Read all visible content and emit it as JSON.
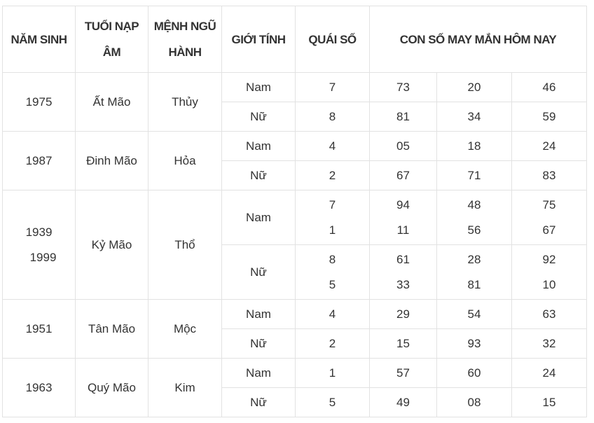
{
  "header": {
    "nam_sinh": "NĂM SINH",
    "tuoi_nap_am": "TUỔI NẠP ÂM",
    "menh_ngu_hanh": "MỆNH NGŨ HÀNH",
    "gioi_tinh": "GIỚI TÍNH",
    "quai_so": "QUÁI SỐ",
    "con_so": "CON SỐ MAY MẮN HÔM NAY"
  },
  "groups": [
    {
      "years": [
        "1975"
      ],
      "nap_am": "Ất Mão",
      "menh": "Thủy",
      "genders": [
        {
          "label": "Nam",
          "quai": [
            "7"
          ],
          "numbers": [
            [
              "73",
              "20",
              "46"
            ]
          ]
        },
        {
          "label": "Nữ",
          "quai": [
            "8"
          ],
          "numbers": [
            [
              "81",
              "34",
              "59"
            ]
          ]
        }
      ]
    },
    {
      "years": [
        "1987"
      ],
      "nap_am": "Đinh Mão",
      "menh": "Hỏa",
      "genders": [
        {
          "label": "Nam",
          "quai": [
            "4"
          ],
          "numbers": [
            [
              "05",
              "18",
              "24"
            ]
          ]
        },
        {
          "label": "Nữ",
          "quai": [
            "2"
          ],
          "numbers": [
            [
              "67",
              "71",
              "83"
            ]
          ]
        }
      ]
    },
    {
      "years": [
        "1939",
        "1999"
      ],
      "nap_am": "Kỷ Mão",
      "menh": "Thổ",
      "genders": [
        {
          "label": "Nam",
          "quai": [
            "7",
            "1"
          ],
          "numbers": [
            [
              "94",
              "48",
              "75"
            ],
            [
              "11",
              "56",
              "67"
            ]
          ]
        },
        {
          "label": "Nữ",
          "quai": [
            "8",
            "5"
          ],
          "numbers": [
            [
              "61",
              "28",
              "92"
            ],
            [
              "33",
              "81",
              "10"
            ]
          ]
        }
      ]
    },
    {
      "years": [
        "1951"
      ],
      "nap_am": "Tân Mão",
      "menh": "Mộc",
      "genders": [
        {
          "label": "Nam",
          "quai": [
            "4"
          ],
          "numbers": [
            [
              "29",
              "54",
              "63"
            ]
          ]
        },
        {
          "label": "Nữ",
          "quai": [
            "2"
          ],
          "numbers": [
            [
              "15",
              "93",
              "32"
            ]
          ]
        }
      ]
    },
    {
      "years": [
        "1963"
      ],
      "nap_am": "Quý Mão",
      "menh": "Kim",
      "genders": [
        {
          "label": "Nam",
          "quai": [
            "1"
          ],
          "numbers": [
            [
              "57",
              "60",
              "24"
            ]
          ]
        },
        {
          "label": "Nữ",
          "quai": [
            "5"
          ],
          "numbers": [
            [
              "49",
              "08",
              "15"
            ]
          ]
        }
      ]
    }
  ]
}
